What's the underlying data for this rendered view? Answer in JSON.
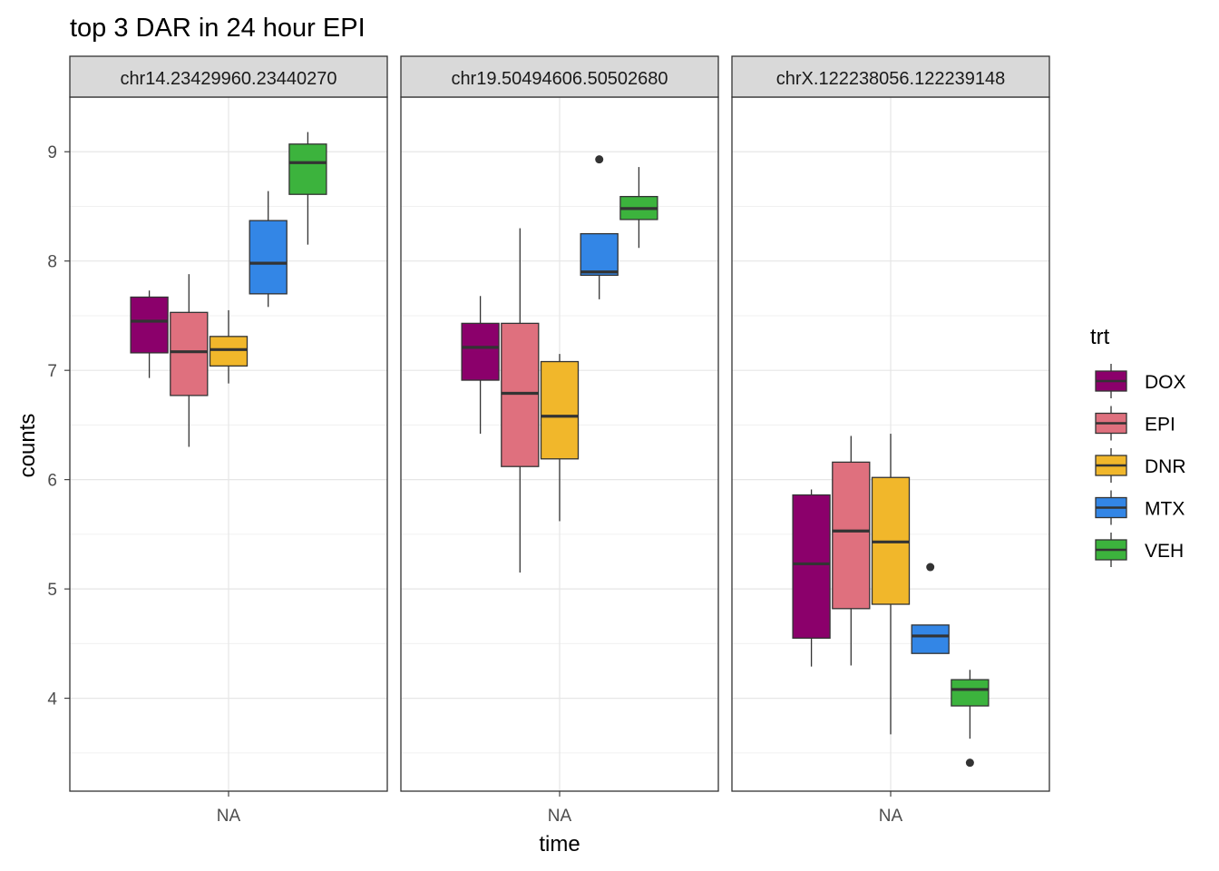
{
  "chart_data": {
    "type": "boxplot",
    "title": "top 3 DAR in 24 hour EPI",
    "xlabel": "time",
    "ylabel": "counts",
    "x_categories": [
      "NA"
    ],
    "ylim": [
      3.15,
      9.5
    ],
    "y_ticks": [
      4,
      5,
      6,
      7,
      8,
      9
    ],
    "grid": true,
    "legend": {
      "title": "trt",
      "placement": "right",
      "items": [
        {
          "name": "DOX",
          "color": "#8B006B"
        },
        {
          "name": "EPI",
          "color": "#DF707E"
        },
        {
          "name": "DNR",
          "color": "#F1B72B"
        },
        {
          "name": "MTX",
          "color": "#3386E6"
        },
        {
          "name": "VEH",
          "color": "#3CB33D"
        }
      ]
    },
    "panels": [
      {
        "label": "chr14.23429960.23440270",
        "boxes": [
          {
            "trt": "DOX",
            "min": 6.93,
            "q1": 7.16,
            "median": 7.45,
            "q3": 7.67,
            "max": 7.73,
            "outliers": []
          },
          {
            "trt": "EPI",
            "min": 6.3,
            "q1": 6.77,
            "median": 7.17,
            "q3": 7.53,
            "max": 7.88,
            "outliers": []
          },
          {
            "trt": "DNR",
            "min": 6.88,
            "q1": 7.04,
            "median": 7.19,
            "q3": 7.31,
            "max": 7.55,
            "outliers": []
          },
          {
            "trt": "MTX",
            "min": 7.58,
            "q1": 7.7,
            "median": 7.98,
            "q3": 8.37,
            "max": 8.64,
            "outliers": []
          },
          {
            "trt": "VEH",
            "min": 8.15,
            "q1": 8.61,
            "median": 8.9,
            "q3": 9.07,
            "max": 9.18,
            "outliers": []
          }
        ]
      },
      {
        "label": "chr19.50494606.50502680",
        "boxes": [
          {
            "trt": "DOX",
            "min": 6.42,
            "q1": 6.91,
            "median": 7.21,
            "q3": 7.43,
            "max": 7.68,
            "outliers": []
          },
          {
            "trt": "EPI",
            "min": 5.15,
            "q1": 6.12,
            "median": 6.79,
            "q3": 7.43,
            "max": 8.3,
            "outliers": []
          },
          {
            "trt": "DNR",
            "min": 5.62,
            "q1": 6.19,
            "median": 6.58,
            "q3": 7.08,
            "max": 7.15,
            "outliers": []
          },
          {
            "trt": "MTX",
            "min": 7.65,
            "q1": 7.87,
            "median": 7.9,
            "q3": 8.25,
            "max": 8.25,
            "outliers": [
              8.93
            ]
          },
          {
            "trt": "VEH",
            "min": 8.12,
            "q1": 8.38,
            "median": 8.48,
            "q3": 8.59,
            "max": 8.86,
            "outliers": []
          }
        ]
      },
      {
        "label": "chrX.122238056.122239148",
        "boxes": [
          {
            "trt": "DOX",
            "min": 4.29,
            "q1": 4.55,
            "median": 5.23,
            "q3": 5.86,
            "max": 5.91,
            "outliers": []
          },
          {
            "trt": "EPI",
            "min": 4.3,
            "q1": 4.82,
            "median": 5.53,
            "q3": 6.16,
            "max": 6.4,
            "outliers": []
          },
          {
            "trt": "DNR",
            "min": 3.67,
            "q1": 4.86,
            "median": 5.43,
            "q3": 6.02,
            "max": 6.42,
            "outliers": []
          },
          {
            "trt": "MTX",
            "min": 4.41,
            "q1": 4.41,
            "median": 4.57,
            "q3": 4.67,
            "max": 4.67,
            "outliers": [
              5.2
            ]
          },
          {
            "trt": "VEH",
            "min": 3.63,
            "q1": 3.93,
            "median": 4.08,
            "q3": 4.17,
            "max": 4.26,
            "outliers": [
              3.41
            ]
          }
        ]
      }
    ]
  }
}
